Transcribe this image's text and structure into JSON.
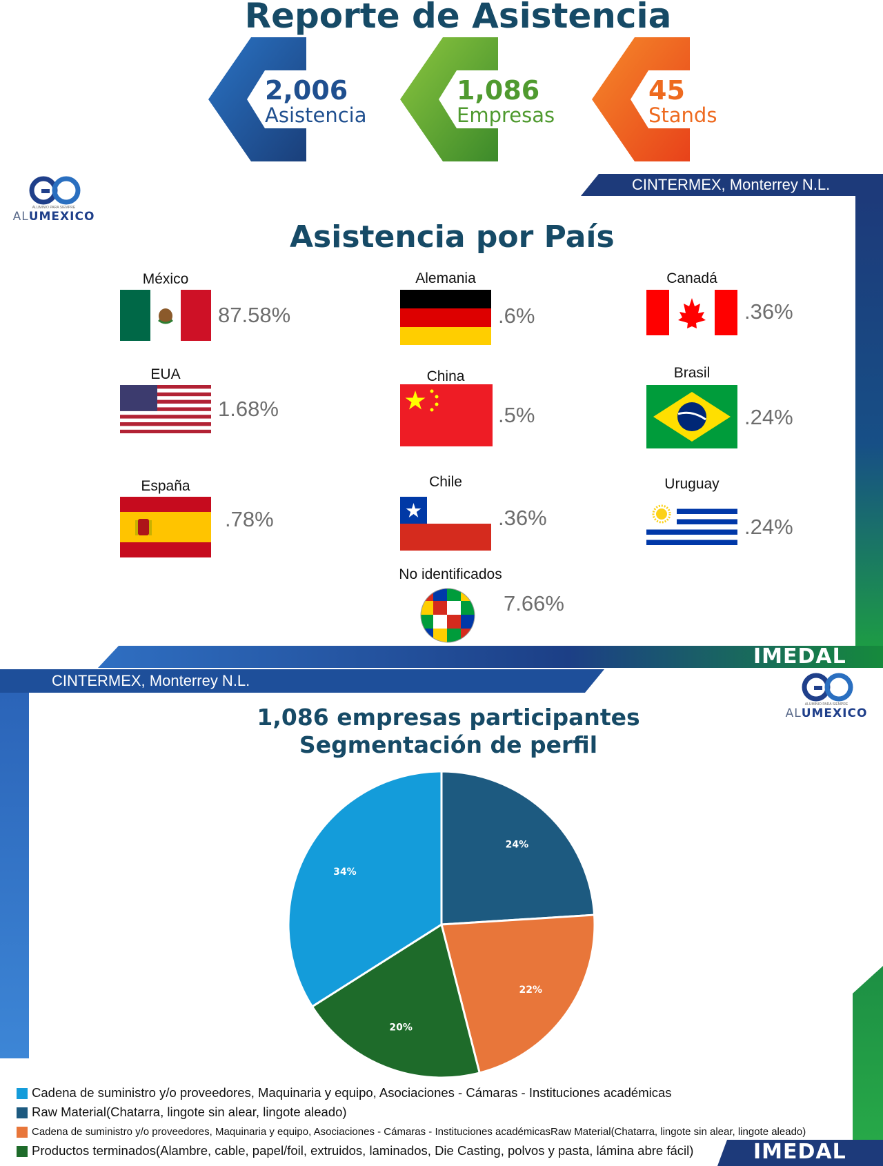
{
  "report_title": "Reporte de Asistencia",
  "kpis": [
    {
      "value": "2,006",
      "label": "Asistencia",
      "color": "#1f4f8f"
    },
    {
      "value": "1,086",
      "label": "Empresas",
      "color": "#4f9a2f"
    },
    {
      "value": "45",
      "label": "Stands",
      "color": "#ee6a1f"
    }
  ],
  "venue": "CINTERMEX, Monterrey N.L.",
  "logo": {
    "prefix": "AL",
    "name": "UMEXICO",
    "tagline": "ALUMINIO PARA SIEMPRE"
  },
  "brand": "IMEDAL",
  "countries_title": "Asistencia por País",
  "countries": [
    {
      "name": "México",
      "pct": "87.58%",
      "flag": "mexico-flag-icon"
    },
    {
      "name": "Alemania",
      "pct": ".6%",
      "flag": "germany-flag-icon"
    },
    {
      "name": "Canadá",
      "pct": ".36%",
      "flag": "canada-flag-icon"
    },
    {
      "name": "EUA",
      "pct": "1.68%",
      "flag": "usa-flag-icon"
    },
    {
      "name": "China",
      "pct": ".5%",
      "flag": "china-flag-icon"
    },
    {
      "name": "Brasil",
      "pct": ".24%",
      "flag": "brazil-flag-icon"
    },
    {
      "name": "España",
      "pct": ".78%",
      "flag": "spain-flag-icon"
    },
    {
      "name": "Chile",
      "pct": ".36%",
      "flag": "chile-flag-icon"
    },
    {
      "name": "Uruguay",
      "pct": ".24%",
      "flag": "uruguay-flag-icon"
    },
    {
      "name": "No identificados",
      "pct": "7.66%",
      "flag": "world-flags-globe-icon"
    }
  ],
  "chart_data": {
    "type": "pie",
    "title": "1,086 empresas participantes",
    "subtitle": "Segmentación de perfil",
    "legend_position": "bottom",
    "slices": [
      {
        "label": "Raw Material(Chatarra, lingote sin alear, lingote aleado)",
        "value": 24,
        "display": "24%",
        "color": "#1d5a80"
      },
      {
        "label": "Cadena de suministro y/o proveedores, Maquinaria y equipo, Asociaciones - Cámaras - Instituciones académicasRaw Material(Chatarra, lingote sin alear, lingote aleado)",
        "value": 22,
        "display": "22%",
        "color": "#e8763a"
      },
      {
        "label": "Productos terminados(Alambre, cable, papel/foil, extruidos, laminados, Die Casting, polvos y pasta, lámina abre fácil)",
        "value": 20,
        "display": "20%",
        "color": "#1e6b2a"
      },
      {
        "label": "Cadena de suministro y/o proveedores, Maquinaria y equipo, Asociaciones - Cámaras - Instituciones académicas",
        "value": 34,
        "display": "34%",
        "color": "#149cda"
      }
    ],
    "legend": [
      {
        "label": "Cadena de suministro y/o proveedores, Maquinaria y equipo, Asociaciones - Cámaras - Instituciones académicas",
        "color": "#149cda"
      },
      {
        "label": "Raw Material(Chatarra, lingote sin alear, lingote aleado)",
        "color": "#1d5a80"
      },
      {
        "label": "Cadena de suministro y/o proveedores, Maquinaria y equipo, Asociaciones - Cámaras - Instituciones académicasRaw Material(Chatarra, lingote sin alear, lingote aleado)",
        "color": "#e8763a"
      },
      {
        "label": "Productos terminados(Alambre, cable, papel/foil, extruidos, laminados, Die Casting, polvos y pasta, lámina abre fácil)",
        "color": "#1e6b2a"
      }
    ]
  }
}
